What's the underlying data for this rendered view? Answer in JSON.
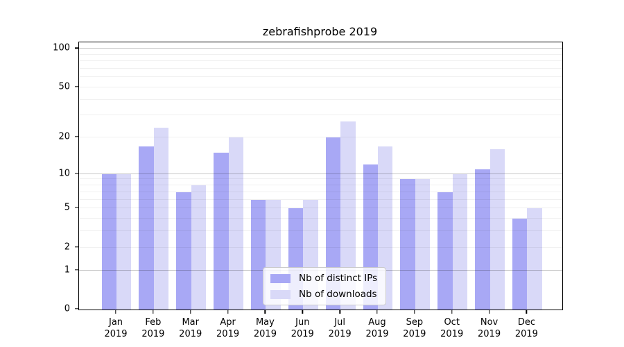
{
  "chart_data": {
    "type": "bar",
    "title": "zebrafishprobe 2019",
    "categories": [
      "Jan",
      "Feb",
      "Mar",
      "Apr",
      "May",
      "Jun",
      "Jul",
      "Aug",
      "Sep",
      "Oct",
      "Nov",
      "Dec"
    ],
    "category_year": "2019",
    "series": [
      {
        "name": "Nb of distinct IPs",
        "color": "#a8a8f5",
        "values": [
          10,
          17,
          7,
          15,
          6,
          5,
          20,
          12,
          9,
          7,
          11,
          4
        ]
      },
      {
        "name": "Nb of downloads",
        "color": "#d9d9f8",
        "values": [
          10,
          24,
          8,
          20,
          6,
          6,
          27,
          17,
          9,
          10,
          16,
          5
        ]
      }
    ],
    "y_scale": "log1p",
    "ylim": [
      0,
      112
    ],
    "y_ticks": [
      0,
      1,
      2,
      5,
      10,
      20,
      50,
      100
    ],
    "y_tick_labels": [
      "0",
      "1",
      "2",
      "5",
      "10",
      "20",
      "50",
      "100"
    ],
    "y_gridlines_major": [
      1,
      10,
      100
    ],
    "y_gridlines_minor": [
      2,
      3,
      4,
      5,
      6,
      7,
      8,
      9,
      20,
      30,
      40,
      50,
      60,
      70,
      80,
      90
    ],
    "grid": true,
    "legend_position": "lower center",
    "xlabel": "",
    "ylabel": ""
  }
}
